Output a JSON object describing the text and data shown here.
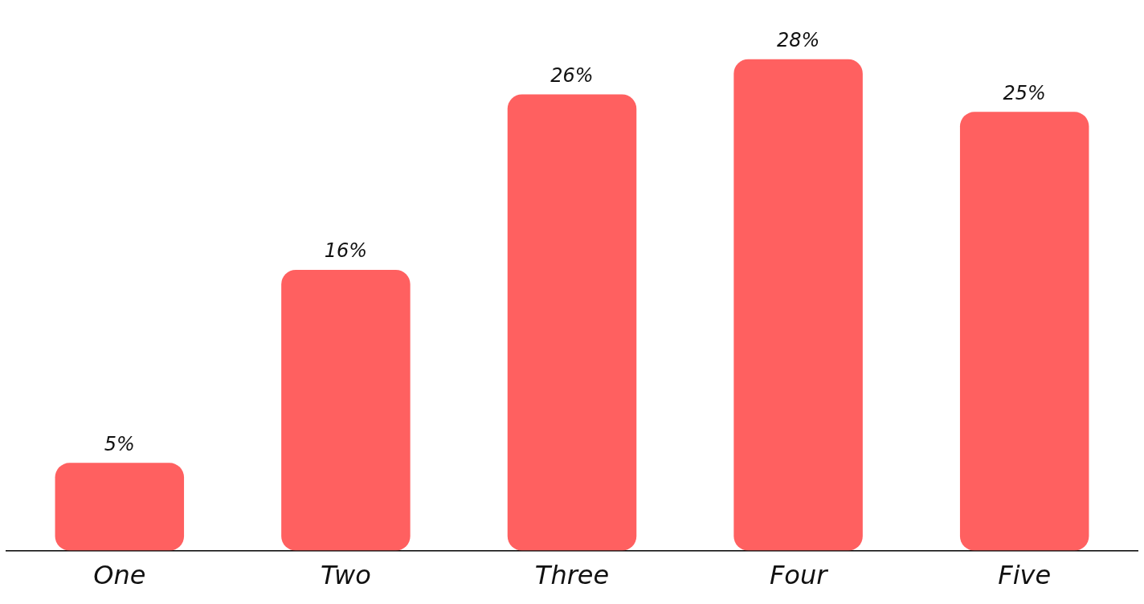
{
  "chart_data": {
    "type": "bar",
    "categories": [
      "One",
      "Two",
      "Three",
      "Four",
      "Five"
    ],
    "values": [
      5,
      16,
      26,
      28,
      25
    ],
    "value_labels": [
      "5%",
      "16%",
      "26%",
      "28%",
      "25%"
    ],
    "color": "#ff6060",
    "tick_labels": "x",
    "grid": false,
    "legend": false
  }
}
